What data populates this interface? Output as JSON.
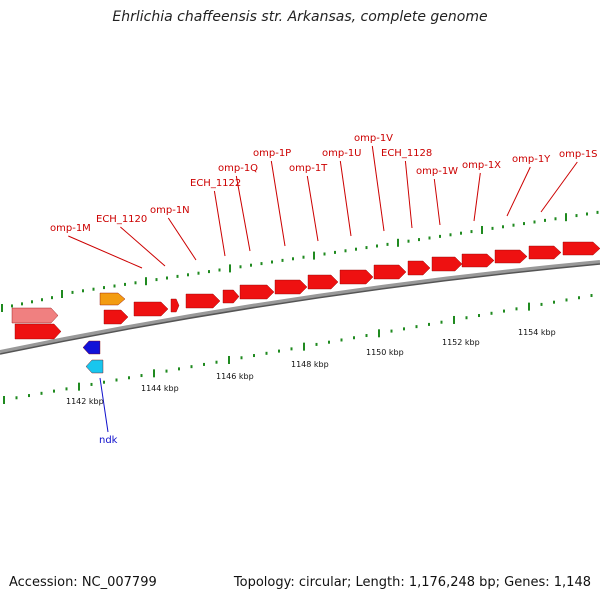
{
  "title": "Ehrlichia chaffeensis str. Arkansas, complete genome",
  "footer": {
    "accession": "Accession: NC_007799",
    "summary": "Topology: circular; Length: 1,176,248 bp; Genes: 1,148"
  },
  "colors": {
    "gene_red": "#ee1111",
    "gene_pink": "#f08080",
    "gene_orange": "#f39c12",
    "gene_blue": "#1212d8",
    "gene_cyan": "#18c6ee",
    "label_red": "#cc0000",
    "label_blue": "#1010cc",
    "dot_green": "#1f8a1f",
    "backbone": "#777777"
  },
  "gene_labels": [
    "omp-1M",
    "ECH_1120",
    "omp-1N",
    "ECH_1122",
    "omp-1Q",
    "omp-1P",
    "omp-1T",
    "omp-1U",
    "omp-1V",
    "ECH_1128",
    "omp-1W",
    "omp-1X",
    "omp-1Y",
    "omp-1S"
  ],
  "other_labels": [
    "ndk"
  ],
  "kbp_ticks": [
    "1142 kbp",
    "1144 kbp",
    "1146 kbp",
    "1148 kbp",
    "1150 kbp",
    "1152 kbp",
    "1154 kbp"
  ]
}
